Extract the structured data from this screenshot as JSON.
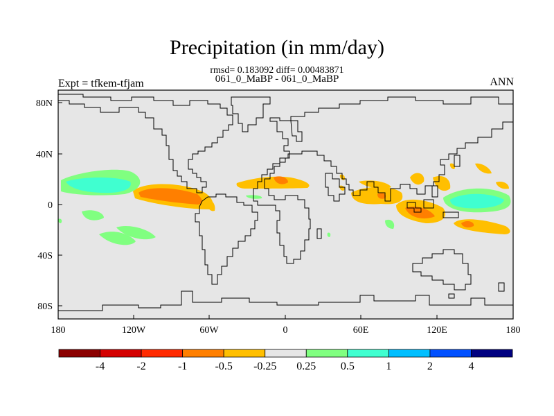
{
  "title": "Precipitation (in mm/day)",
  "stats_line": "rmsd= 0.183092 diff= 0.00483871",
  "subtitle": "061_0_MaBP - 061_0_MaBP",
  "experiment": "Expt = tfkem-tfjam",
  "season": "ANN",
  "map_extent": {
    "lon": [
      -180,
      180
    ],
    "lat": [
      -90,
      90
    ]
  },
  "x_ticks": [
    "180",
    "120W",
    "60W",
    "0",
    "60E",
    "120E",
    "180"
  ],
  "y_ticks": [
    "80N",
    "40N",
    "0",
    "40S",
    "80S"
  ],
  "colorbar": {
    "labels": [
      "-4",
      "-2",
      "-1",
      "-0.5",
      "-0.25",
      "0.25",
      "0.5",
      "1",
      "2",
      "4"
    ],
    "colors": [
      "#8b0000",
      "#d40000",
      "#ff2a00",
      "#ff7f00",
      "#ffbf00",
      "#e6e6e6",
      "#80ff80",
      "#40ffd0",
      "#00bfff",
      "#0050ff",
      "#000080"
    ]
  },
  "colors": {
    "background_field": "#e6e6e6",
    "coastline": "#000000"
  }
}
